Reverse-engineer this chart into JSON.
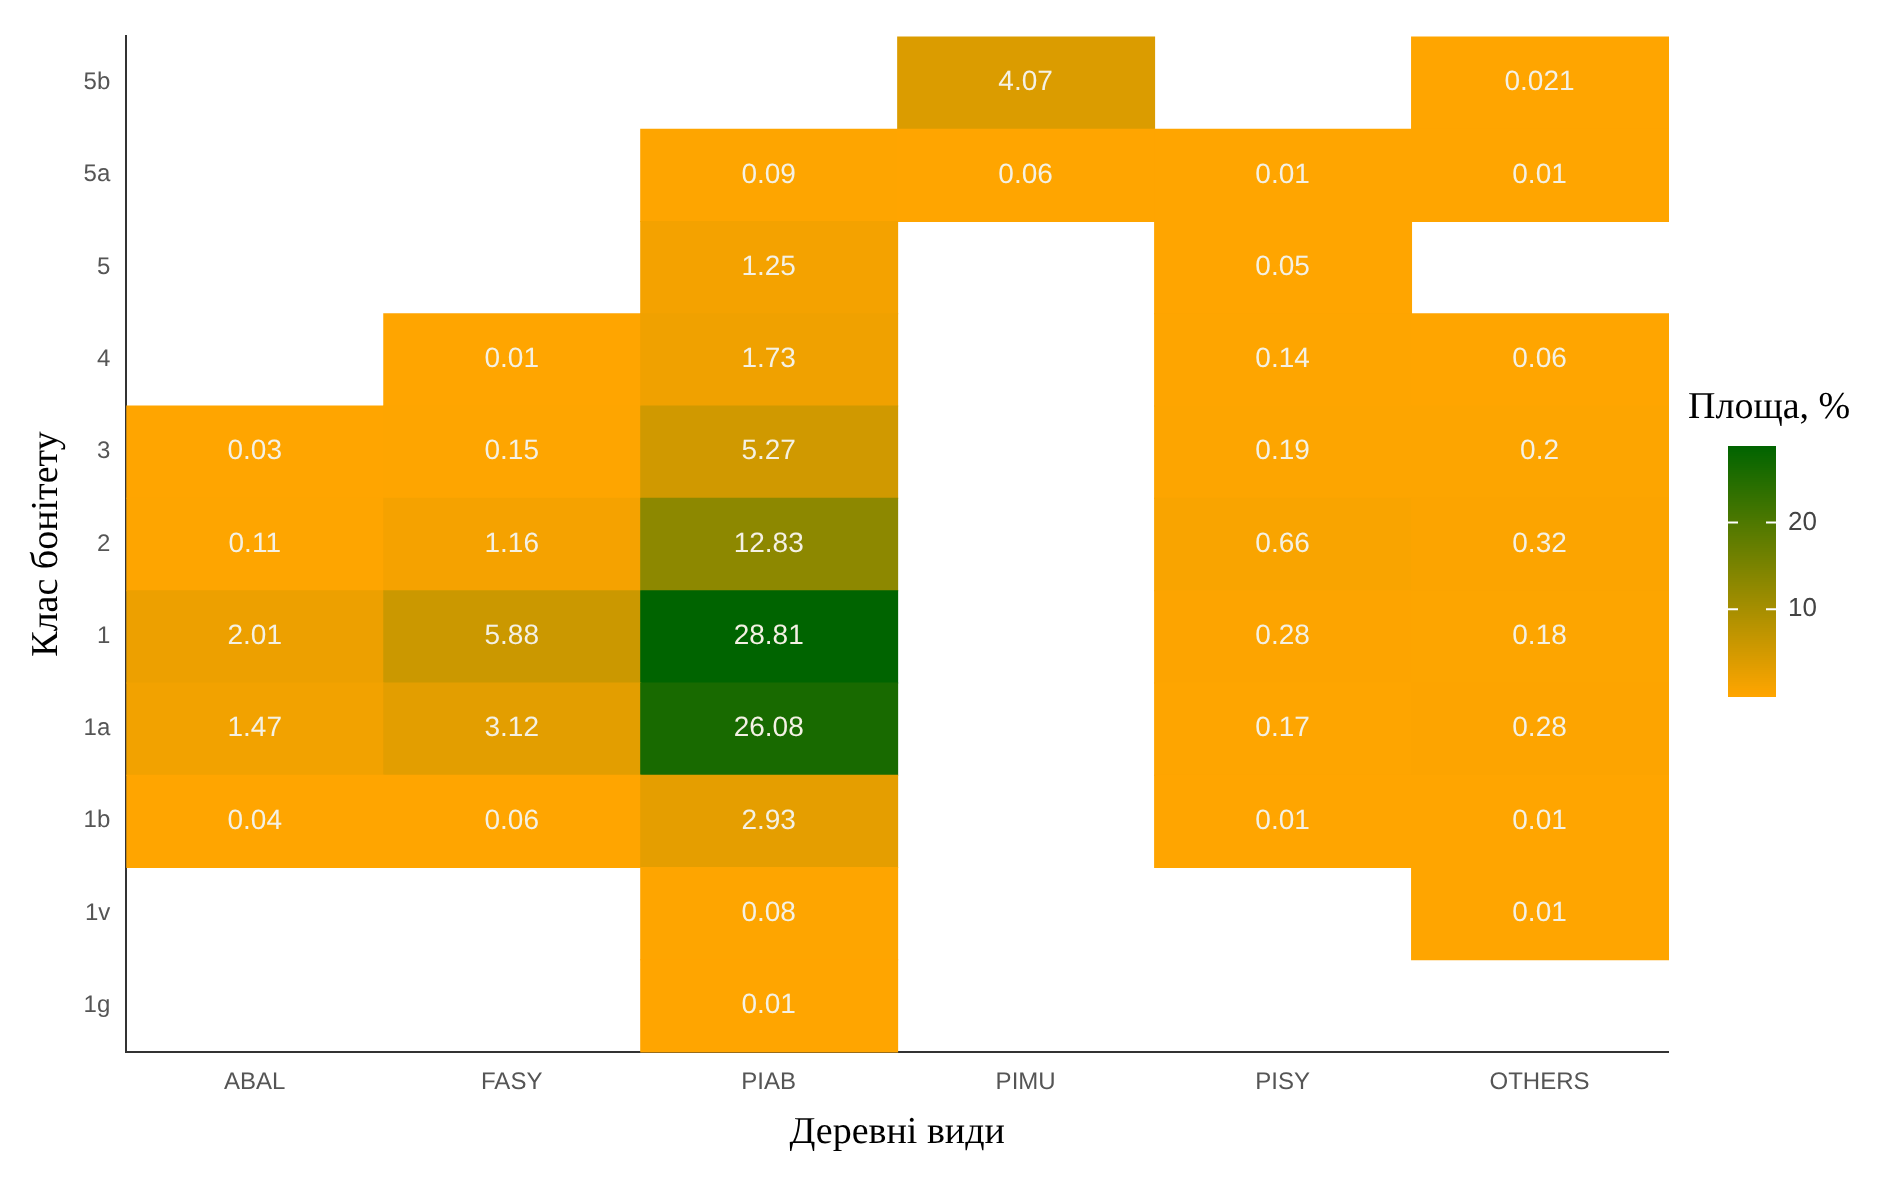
{
  "chart_data": {
    "type": "heatmap",
    "xlabel": "Деревні види",
    "ylabel": "Клас бонітету",
    "clabel": "Площа, %",
    "categories": [
      "ABAL",
      "FASY",
      "PIAB",
      "PIMU",
      "PISY",
      "OTHERS"
    ],
    "y_categories": [
      "5b",
      "5a",
      "5",
      "4",
      "3",
      "2",
      "1",
      "1a",
      "1b",
      "1v",
      "1g"
    ],
    "cells": [
      [
        null,
        null,
        null,
        4.07,
        null,
        0.021
      ],
      [
        null,
        null,
        0.09,
        0.06,
        0.01,
        0.01
      ],
      [
        null,
        null,
        1.25,
        null,
        0.05,
        null
      ],
      [
        null,
        0.01,
        1.73,
        null,
        0.14,
        0.06
      ],
      [
        0.03,
        0.15,
        5.27,
        null,
        0.19,
        0.2
      ],
      [
        0.11,
        1.16,
        12.83,
        null,
        0.66,
        0.32
      ],
      [
        2.01,
        5.88,
        28.81,
        null,
        0.28,
        0.18
      ],
      [
        1.47,
        3.12,
        26.08,
        null,
        0.17,
        0.28
      ],
      [
        0.04,
        0.06,
        2.93,
        null,
        0.01,
        0.01
      ],
      [
        null,
        null,
        0.08,
        null,
        null,
        0.01
      ],
      [
        null,
        null,
        0.01,
        null,
        null,
        null
      ]
    ],
    "colors": [
      "#ffa500",
      "#006400"
    ],
    "clim": [
      0.01,
      28.81
    ],
    "cticks": [
      10,
      20
    ],
    "data_labels": true,
    "grid": false
  }
}
